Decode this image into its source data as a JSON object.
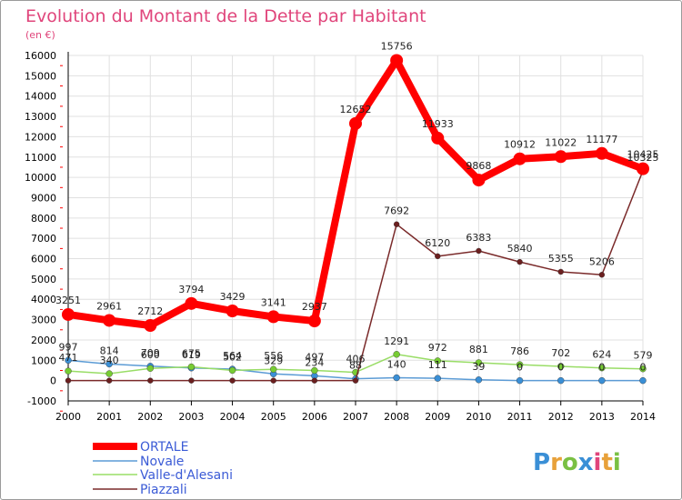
{
  "title": "Evolution du Montant de la Dette par Habitant",
  "unit_label": "(en €)",
  "brand": "Proxiti",
  "colors": {
    "title": "#e0457b",
    "grid": "#e0e0e0",
    "axis": "#000000",
    "tick_text": "#000000",
    "legend_text": "#3b5bd6",
    "red_ticks": "#ff0000"
  },
  "chart_data": {
    "type": "line",
    "title": "Evolution du Montant de la Dette par Habitant",
    "ylabel": "(en €)",
    "xlabel": "",
    "x": [
      "2000",
      "2001",
      "2002",
      "2003",
      "2004",
      "2005",
      "2006",
      "2007",
      "2008",
      "2009",
      "2010",
      "2011",
      "2012",
      "2013",
      "2014"
    ],
    "ylim": [
      -1000,
      16000
    ],
    "yticks": [
      -1000,
      0,
      1000,
      2000,
      3000,
      4000,
      5000,
      6000,
      7000,
      8000,
      9000,
      10000,
      11000,
      12000,
      13000,
      14000,
      15000,
      16000
    ],
    "grid": true,
    "legend_position": "bottom-left",
    "series": [
      {
        "name": "ORTALE",
        "color": "#ff0000",
        "marker_color": "#ff0000",
        "line_width": 8,
        "marker_radius": 7,
        "values": [
          3251,
          2961,
          2712,
          3794,
          3429,
          3141,
          2937,
          12652,
          15756,
          11933,
          9868,
          10912,
          11022,
          11177,
          10425
        ]
      },
      {
        "name": "Novale",
        "color": "#5b9bd5",
        "marker_color": "#3a8fd6",
        "line_width": 1.5,
        "marker_radius": 3.5,
        "values": [
          997,
          814,
          709,
          619,
          564,
          329,
          234,
          88,
          140,
          111,
          39,
          0,
          0,
          0,
          0
        ]
      },
      {
        "name": "Valle-d'Alesani",
        "color": "#99dd66",
        "marker_color": "#77cc33",
        "line_width": 1.5,
        "marker_radius": 3.5,
        "values": [
          471,
          340,
          600,
          675,
          502,
          556,
          497,
          406,
          1291,
          972,
          881,
          786,
          702,
          624,
          579
        ]
      },
      {
        "name": "Piazzali",
        "color": "#7a2a2a",
        "marker_color": "#6b1f1f",
        "line_width": 1.5,
        "marker_radius": 3,
        "values": [
          0,
          0,
          0,
          0,
          0,
          0,
          0,
          0,
          7692,
          6120,
          6383,
          5840,
          5355,
          5206,
          10325
        ]
      }
    ],
    "data_labels": {
      "ORTALE": [
        "3251",
        "2961",
        "2712",
        "3794",
        "3429",
        "3141",
        "2937",
        "12652",
        "15756",
        "11933",
        "9868",
        "10912",
        "11022",
        "11177",
        "10425"
      ],
      "Novale": [
        "997",
        "814",
        "709",
        "619",
        "564",
        "329",
        "234",
        "88",
        "140",
        "111",
        "39",
        "0",
        "0",
        "0",
        "0"
      ],
      "Valle-d'Alesani": [
        "471",
        "340",
        "600",
        "675",
        "502",
        "556",
        "497",
        "406",
        "1291",
        "972",
        "881",
        "786",
        "702",
        "624",
        "579"
      ],
      "Piazzali": [
        "",
        "",
        "",
        "",
        "",
        "",
        "",
        "",
        "7692",
        "6120",
        "6383",
        "5840",
        "5355",
        "5206",
        "10325"
      ]
    }
  }
}
